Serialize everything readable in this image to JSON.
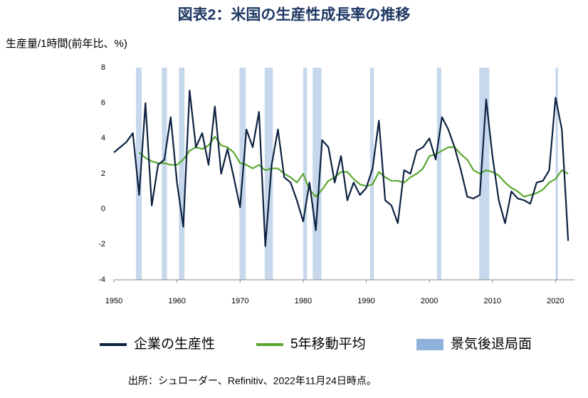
{
  "chart_data": {
    "type": "line",
    "title": "図表2：米国の生産性成長率の推移",
    "ylabel": "生産量/1時間(前年比、%)",
    "source": "出所：シュローダー、Refinitiv、2022年11月24日時点。",
    "x": [
      1950,
      1951,
      1952,
      1953,
      1954,
      1955,
      1956,
      1957,
      1958,
      1959,
      1960,
      1961,
      1962,
      1963,
      1964,
      1965,
      1966,
      1967,
      1968,
      1969,
      1970,
      1971,
      1972,
      1973,
      1974,
      1975,
      1976,
      1977,
      1978,
      1979,
      1980,
      1981,
      1982,
      1983,
      1984,
      1985,
      1986,
      1987,
      1988,
      1989,
      1990,
      1991,
      1992,
      1993,
      1994,
      1995,
      1996,
      1997,
      1998,
      1999,
      2000,
      2001,
      2002,
      2003,
      2004,
      2005,
      2006,
      2007,
      2008,
      2009,
      2010,
      2011,
      2012,
      2013,
      2014,
      2015,
      2016,
      2017,
      2018,
      2019,
      2020,
      2021,
      2022
    ],
    "series": [
      {
        "name": "企業の生産性",
        "color": "#0d2240",
        "values": [
          3.2,
          3.5,
          3.8,
          4.3,
          0.8,
          6.0,
          0.2,
          2.5,
          2.8,
          5.2,
          1.5,
          -1.0,
          6.7,
          3.5,
          4.3,
          2.5,
          5.8,
          2.0,
          3.4,
          1.8,
          0.1,
          4.5,
          3.5,
          5.5,
          -2.1,
          2.5,
          4.5,
          1.8,
          1.5,
          0.5,
          -0.7,
          1.5,
          -1.2,
          3.9,
          3.5,
          1.5,
          3.0,
          0.5,
          1.5,
          0.8,
          1.2,
          2.3,
          5.0,
          0.5,
          0.2,
          -0.8,
          2.2,
          2.0,
          3.3,
          3.5,
          4.0,
          2.8,
          5.2,
          4.5,
          3.5,
          2.2,
          0.7,
          0.6,
          0.8,
          6.2,
          3.0,
          0.5,
          -0.8,
          1.0,
          0.6,
          0.5,
          0.3,
          1.5,
          1.6,
          2.2,
          6.3,
          4.5,
          -1.8
        ]
      },
      {
        "name": "5年移動平均",
        "color": "#5aa832",
        "values": [
          null,
          null,
          null,
          null,
          3.2,
          2.9,
          2.7,
          2.6,
          2.6,
          2.5,
          2.5,
          2.8,
          3.3,
          3.5,
          3.4,
          3.6,
          4.1,
          3.6,
          3.5,
          3.2,
          2.6,
          2.5,
          2.3,
          2.5,
          2.2,
          2.3,
          2.3,
          2.0,
          1.8,
          1.5,
          2.0,
          1.1,
          0.7,
          1.1,
          1.6,
          1.8,
          2.1,
          2.1,
          1.7,
          1.4,
          1.3,
          1.4,
          2.1,
          1.8,
          1.6,
          1.6,
          1.5,
          1.8,
          2.0,
          2.3,
          3.0,
          3.1,
          3.3,
          3.5,
          3.5,
          3.1,
          2.8,
          2.2,
          2.0,
          2.2,
          2.1,
          1.9,
          1.5,
          1.2,
          1.0,
          0.7,
          0.8,
          0.9,
          1.1,
          1.5,
          1.7,
          2.2,
          2.0
        ]
      }
    ],
    "recessions": {
      "name": "景気後退局面",
      "color": "#8fb2da",
      "ranges": [
        [
          1953.5,
          1954.4
        ],
        [
          1957.6,
          1958.4
        ],
        [
          1960.3,
          1961.2
        ],
        [
          1969.9,
          1970.9
        ],
        [
          1973.9,
          1975.2
        ],
        [
          1980.0,
          1980.6
        ],
        [
          1981.5,
          1982.9
        ],
        [
          1990.6,
          1991.2
        ],
        [
          2001.2,
          2001.9
        ],
        [
          2007.9,
          2009.5
        ],
        [
          2020.0,
          2020.4
        ]
      ]
    },
    "xlim": [
      1950,
      2023
    ],
    "ylim": [
      -4,
      8
    ],
    "xticks": [
      1950,
      1960,
      1970,
      1980,
      1990,
      2000,
      2010,
      2020
    ],
    "yticks": [
      -4,
      -2,
      0,
      2,
      4,
      6,
      8
    ]
  }
}
